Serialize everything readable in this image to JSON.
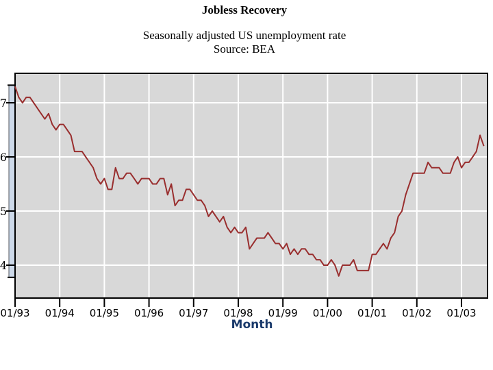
{
  "header": {
    "title": "Jobless Recovery",
    "subtitle": "Seasonally adjusted US unemployment rate",
    "source": "Source: BEA"
  },
  "chart_data": {
    "type": "line",
    "title": "Jobless Recovery",
    "subtitle": "Seasonally adjusted US unemployment rate",
    "source": "Source: BEA",
    "xlabel": "Month",
    "ylabel": "",
    "x_start": "01/1993",
    "x_frequency": "monthly",
    "x_tick_labels": [
      "01/93",
      "01/94",
      "01/95",
      "01/96",
      "01/97",
      "01/98",
      "01/99",
      "01/00",
      "01/01",
      "01/02",
      "01/03"
    ],
    "y_ticks": [
      7,
      6,
      5,
      4
    ],
    "y_tick_labels": [
      "7",
      "6",
      "5",
      "4"
    ],
    "ylim": [
      3.4,
      7.55
    ],
    "grid": true,
    "legend": false,
    "series": [
      {
        "name": "Seasonally adjusted US unemployment rate (%)",
        "values": [
          7.3,
          7.1,
          7.0,
          7.1,
          7.1,
          7.0,
          6.9,
          6.8,
          6.7,
          6.8,
          6.6,
          6.5,
          6.6,
          6.6,
          6.5,
          6.4,
          6.1,
          6.1,
          6.1,
          6.0,
          5.9,
          5.8,
          5.6,
          5.5,
          5.6,
          5.4,
          5.4,
          5.8,
          5.6,
          5.6,
          5.7,
          5.7,
          5.6,
          5.5,
          5.6,
          5.6,
          5.6,
          5.5,
          5.5,
          5.6,
          5.6,
          5.3,
          5.5,
          5.1,
          5.2,
          5.2,
          5.4,
          5.4,
          5.3,
          5.2,
          5.2,
          5.1,
          4.9,
          5.0,
          4.9,
          4.8,
          4.9,
          4.7,
          4.6,
          4.7,
          4.6,
          4.6,
          4.7,
          4.3,
          4.4,
          4.5,
          4.5,
          4.5,
          4.6,
          4.5,
          4.4,
          4.4,
          4.3,
          4.4,
          4.2,
          4.3,
          4.2,
          4.3,
          4.3,
          4.2,
          4.2,
          4.1,
          4.1,
          4.0,
          4.0,
          4.1,
          4.0,
          3.8,
          4.0,
          4.0,
          4.0,
          4.1,
          3.9,
          3.9,
          3.9,
          3.9,
          4.2,
          4.2,
          4.3,
          4.4,
          4.3,
          4.5,
          4.6,
          4.9,
          5.0,
          5.3,
          5.5,
          5.7,
          5.7,
          5.7,
          5.7,
          5.9,
          5.8,
          5.8,
          5.8,
          5.7,
          5.7,
          5.7,
          5.9,
          6.0,
          5.8,
          5.9,
          5.9,
          6.0,
          6.1,
          6.4,
          6.2
        ]
      }
    ]
  },
  "colors": {
    "line": "#992e2e",
    "plot_background": "#d8d8d8",
    "gridline": "#ffffff",
    "axis_strip_fill": "#cdd9e9",
    "axis_strip_border": "#50565e",
    "border": "#000000",
    "month_label": "#1a3a6b"
  }
}
